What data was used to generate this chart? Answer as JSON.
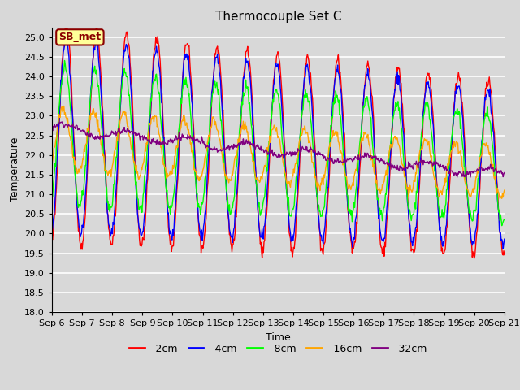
{
  "title": "Thermocouple Set C",
  "xlabel": "Time",
  "ylabel": "Temperature",
  "ylim": [
    18.0,
    25.25
  ],
  "yticks": [
    18.0,
    18.5,
    19.0,
    19.5,
    20.0,
    20.5,
    21.0,
    21.5,
    22.0,
    22.5,
    23.0,
    23.5,
    24.0,
    24.5,
    25.0
  ],
  "xtick_labels": [
    "Sep 6",
    "Sep 7",
    "Sep 8",
    "Sep 9",
    "Sep 10",
    "Sep 11",
    "Sep 12",
    "Sep 13",
    "Sep 14",
    "Sep 15",
    "Sep 16",
    "Sep 17",
    "Sep 18",
    "Sep 19",
    "Sep 20",
    "Sep 21"
  ],
  "series_colors": [
    "red",
    "blue",
    "lime",
    "orange",
    "purple"
  ],
  "series_labels": [
    "-2cm",
    "-4cm",
    "-8cm",
    "-16cm",
    "-32cm"
  ],
  "background_color": "#d8d8d8",
  "plot_bg_color": "#d8d8d8",
  "annotation_text": "SB_met",
  "annotation_bg": "#ffff99",
  "annotation_border": "darkred",
  "annotation_text_color": "darkred",
  "n_days": 15,
  "n_points_per_day": 48,
  "start_day": 6
}
